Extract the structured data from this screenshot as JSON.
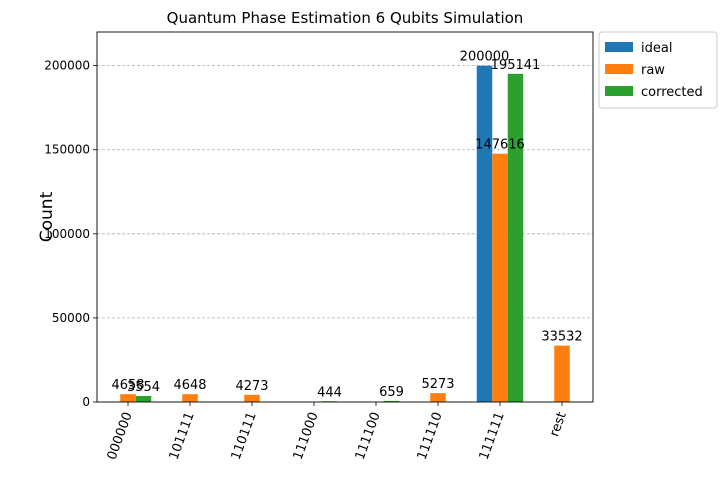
{
  "chart_data": {
    "type": "bar",
    "title": "Quantum Phase Estimation 6 Qubits Simulation",
    "xlabel": "",
    "ylabel": "Count",
    "ylim": [
      0,
      220000
    ],
    "yticks": [
      0,
      50000,
      100000,
      150000,
      200000
    ],
    "grid": "horizontal dashed",
    "legend_position": "outside-right-top",
    "categories": [
      "000000",
      "101111",
      "110111",
      "111000",
      "111100",
      "111110",
      "111111",
      "rest"
    ],
    "series": [
      {
        "name": "ideal",
        "color": "#1f77b4",
        "values": [
          0,
          0,
          0,
          0,
          0,
          0,
          200000,
          0
        ],
        "labels": [
          null,
          null,
          null,
          null,
          null,
          null,
          "200000",
          null
        ]
      },
      {
        "name": "raw",
        "color": "#ff7f0e",
        "values": [
          4658,
          4648,
          4273,
          0,
          0,
          5273,
          147616,
          33532
        ],
        "labels": [
          "4658",
          "4648",
          "4273",
          null,
          null,
          "5273",
          "147616",
          "33532"
        ]
      },
      {
        "name": "corrected",
        "color": "#2ca02c",
        "values": [
          3554,
          0,
          0,
          444,
          659,
          0,
          195141,
          0
        ],
        "labels": [
          "3554",
          null,
          null,
          "444",
          "659",
          null,
          "195141",
          null
        ]
      }
    ]
  }
}
